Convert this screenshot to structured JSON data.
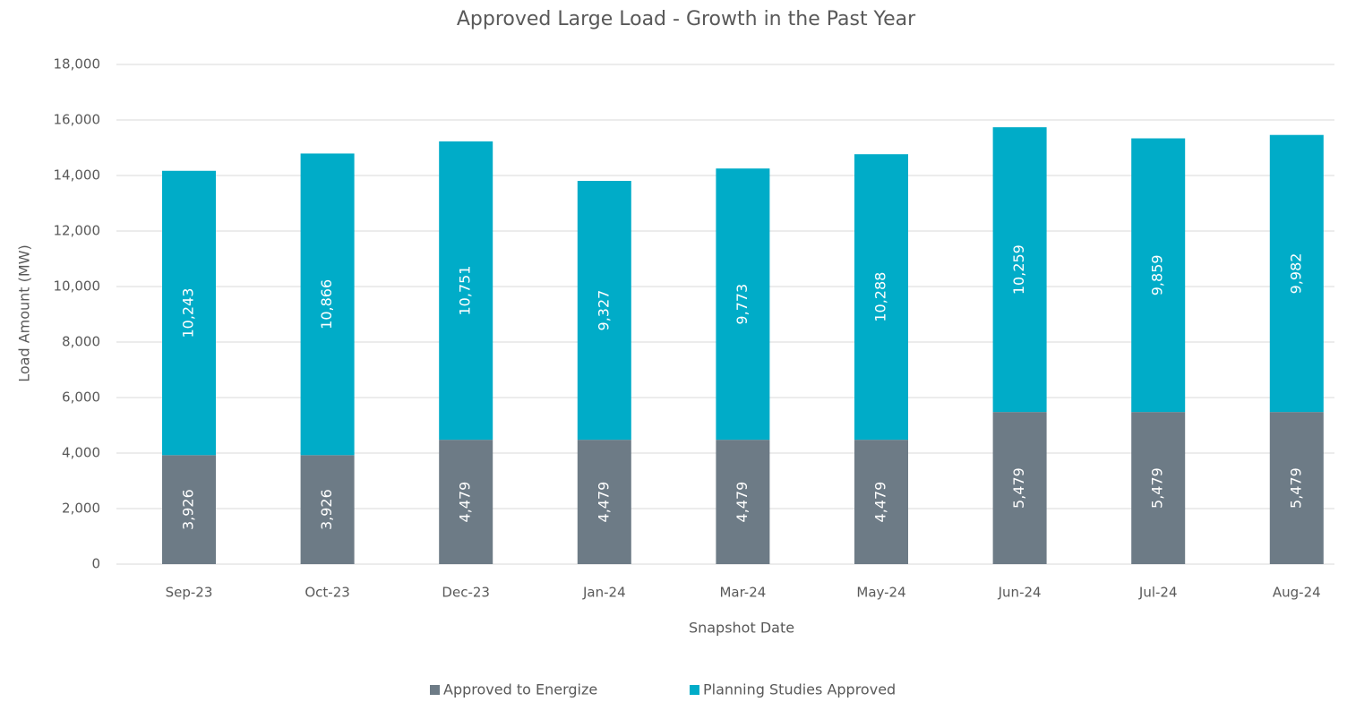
{
  "chart_data": {
    "type": "stacked_bar",
    "title": "Approved Large Load - Growth in the Past Year",
    "xlabel": "Snapshot Date",
    "ylabel": "Load Amount (MW)",
    "categories": [
      "Sep-23",
      "Oct-23",
      "Dec-23",
      "Jan-24",
      "Mar-24",
      "May-24",
      "Jun-24",
      "Jul-24",
      "Aug-24"
    ],
    "series": [
      {
        "name": "Approved to Energize",
        "color": "#6d7b86",
        "values": [
          3926,
          3926,
          4479,
          4479,
          4479,
          4479,
          5479,
          5479,
          5479
        ],
        "value_labels": [
          "3,926",
          "3,926",
          "4,479",
          "4,479",
          "4,479",
          "4,479",
          "5,479",
          "5,479",
          "5,479"
        ]
      },
      {
        "name": "Planning Studies Approved",
        "color": "#00acc8",
        "values": [
          10243,
          10866,
          10751,
          9327,
          9773,
          10288,
          10259,
          9859,
          9982
        ],
        "value_labels": [
          "10,243",
          "10,866",
          "10,751",
          "9,327",
          "9,773",
          "10,288",
          "10,259",
          "9,859",
          "9,982"
        ]
      }
    ],
    "ylim": [
      0,
      18000
    ],
    "yticks": [
      0,
      {
        "value": 2000,
        "label": "2,000"
      },
      {
        "value": 4000,
        "label": "4,000"
      },
      {
        "value": 6000,
        "label": "6,000"
      },
      {
        "value": 8000,
        "label": "8,000"
      },
      {
        "value": 10000,
        "label": "10,000"
      },
      {
        "value": 12000,
        "label": "12,000"
      },
      {
        "value": 14000,
        "label": "14,000"
      },
      {
        "value": 16000,
        "label": "16,000"
      },
      {
        "value": 18000,
        "label": "18,000"
      }
    ],
    "grid": true,
    "legend": "bottom"
  }
}
